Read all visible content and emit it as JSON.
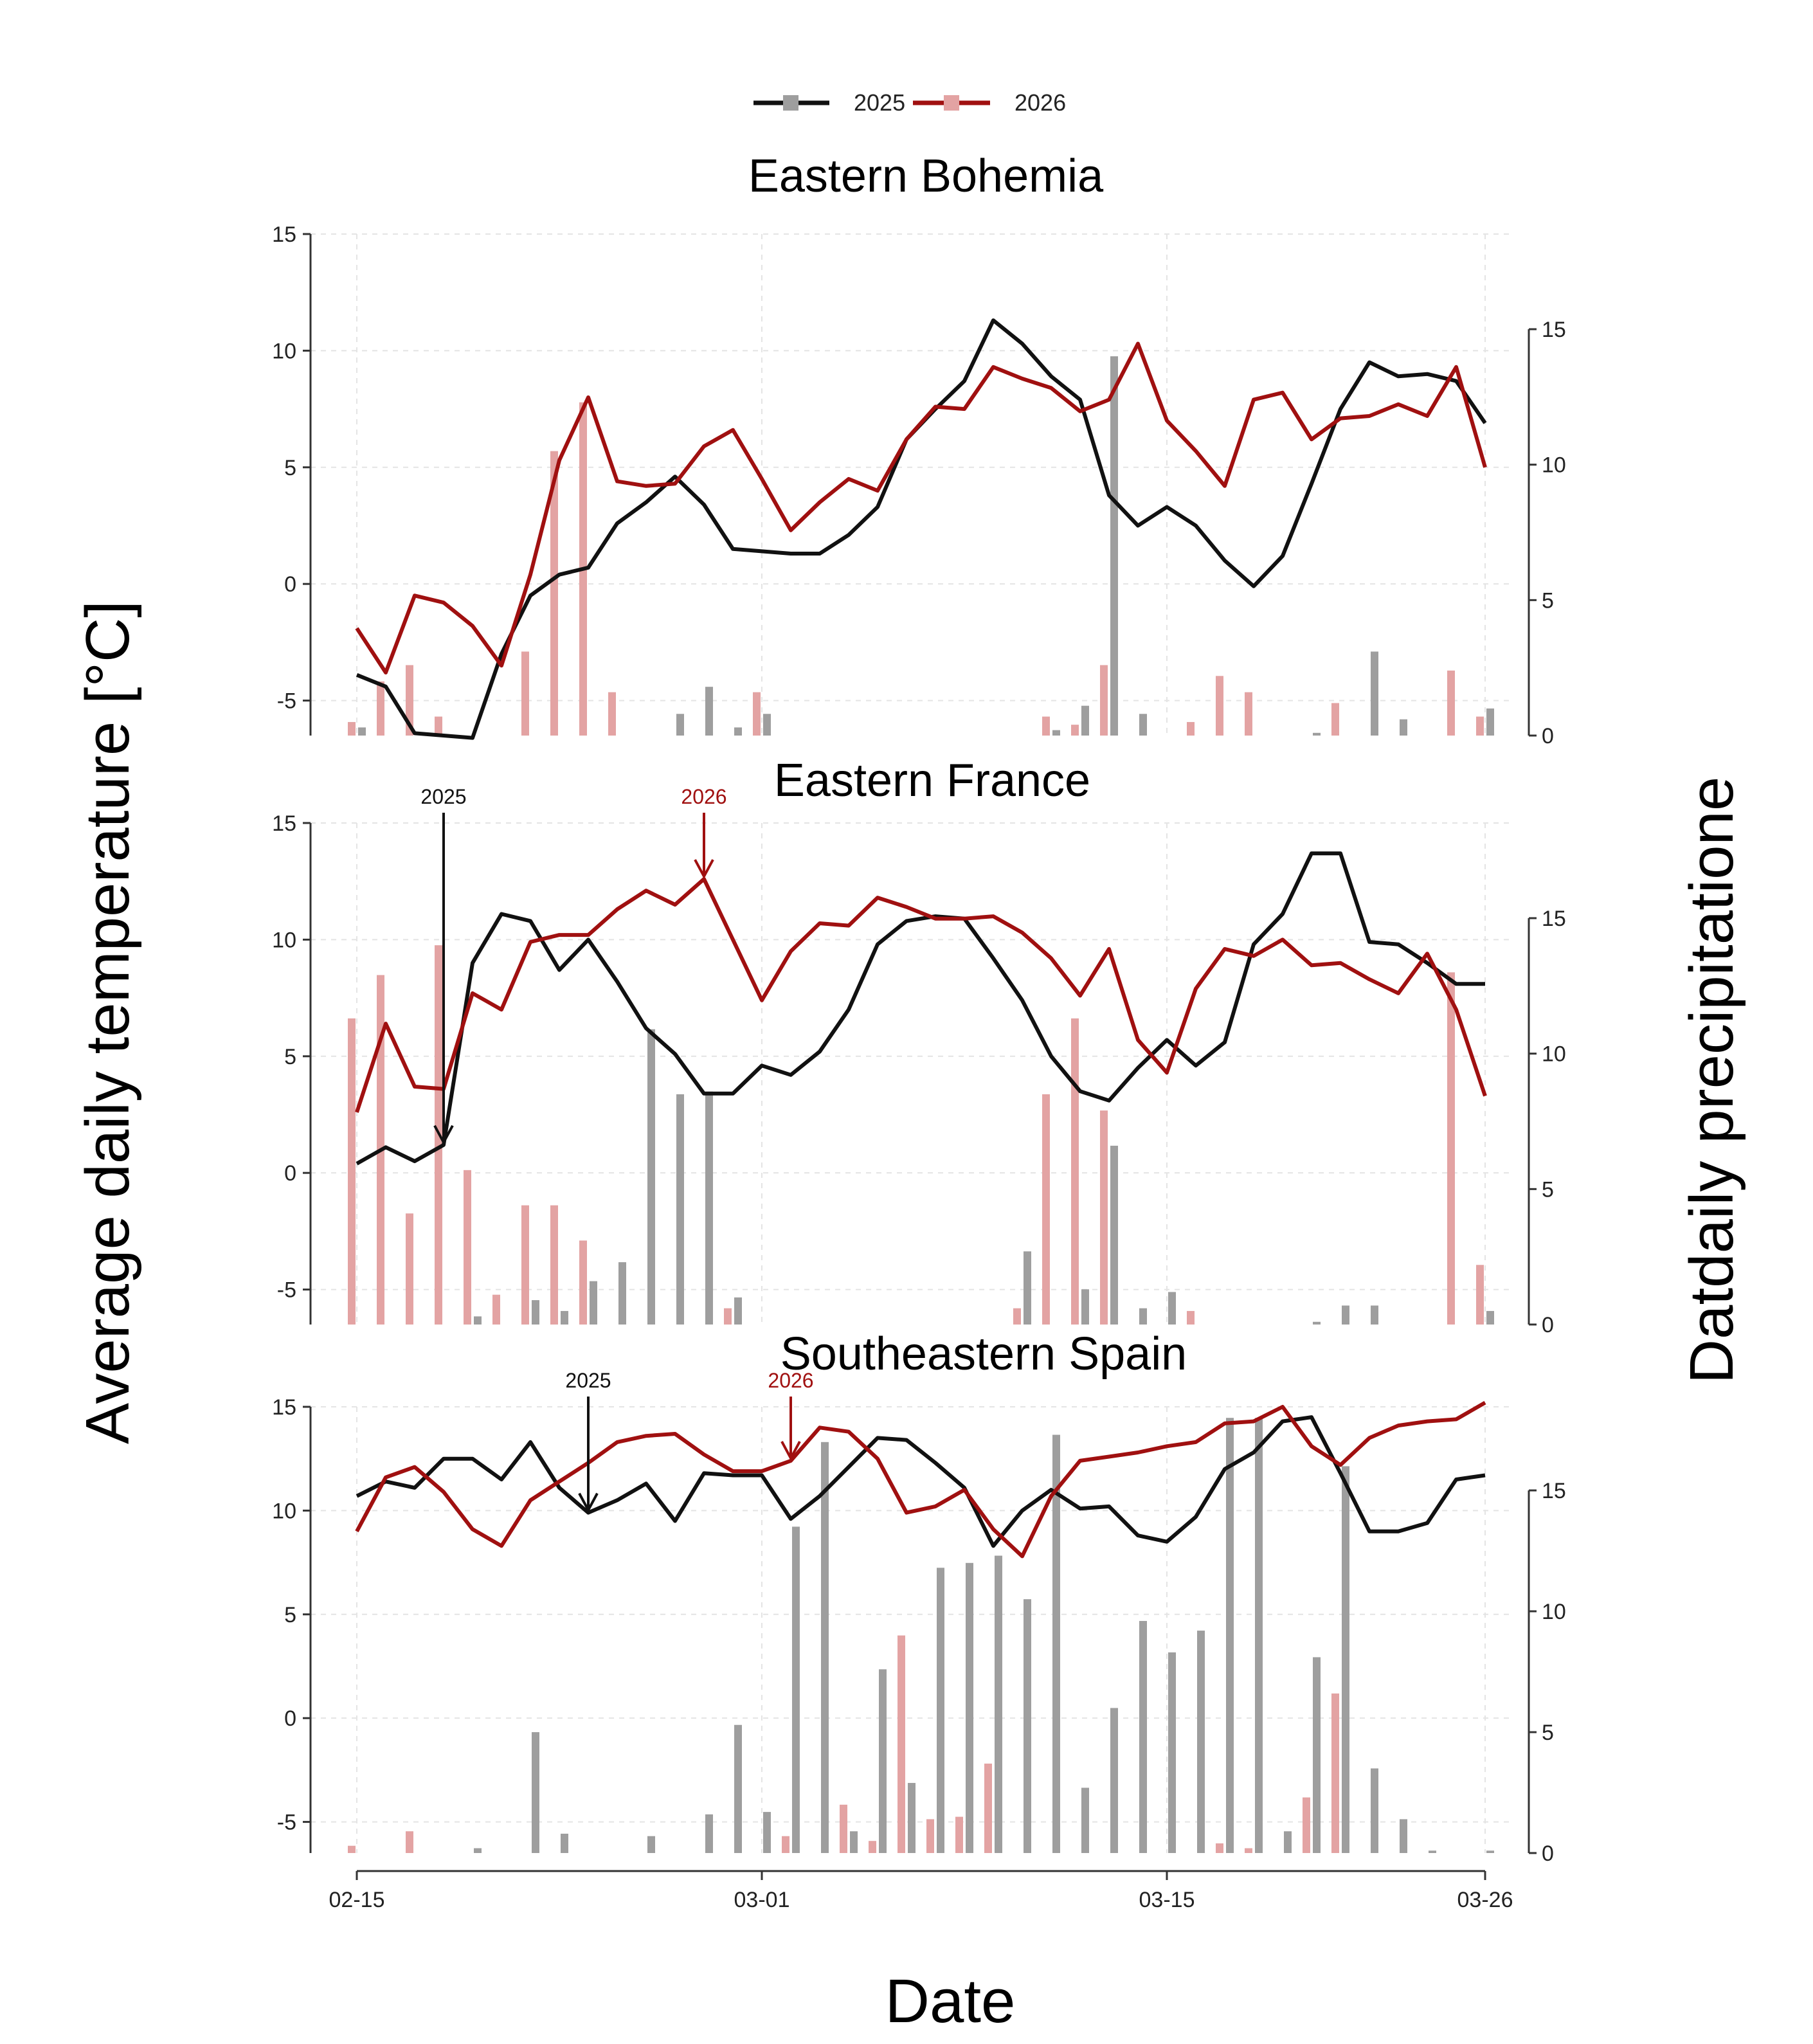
{
  "chart_data": {
    "type": "line+bar",
    "legend": [
      {
        "name": "2025",
        "line_color": "#111111",
        "bar_color": "#9e9e9e"
      },
      {
        "name": "2026",
        "line_color": "#a01010",
        "bar_color": "#e3a3a3"
      }
    ],
    "legend_position": "top-center",
    "xlabel": "Date",
    "ylabel_left": "Average daily temperature [°C]",
    "ylabel_right": "Datdaily precipitatione",
    "x_tick_labels": [
      "02-15",
      "03-01",
      "03-15",
      "03-26"
    ],
    "x_tick_days": [
      0,
      14,
      28,
      39
    ],
    "x_range": [
      0,
      39
    ],
    "panels": [
      {
        "title": "Eastern Bohemia",
        "temp_range": [
          -6.5,
          15
        ],
        "temp_ticks": [
          -5,
          0,
          5,
          10,
          15
        ],
        "temp_tick_labels": [
          "-5",
          "0",
          "5",
          "10",
          "15"
        ],
        "precip_range": [
          0,
          15
        ],
        "precip_ticks": [
          0,
          5,
          10,
          15
        ],
        "precip_tick_labels": [
          "0",
          "5",
          "10",
          "15"
        ],
        "temp_2025": [
          -3.9,
          -4.4,
          -6.4,
          -6.5,
          -6.6,
          -3.0,
          -0.5,
          0.4,
          0.7,
          2.6,
          3.5,
          4.6,
          3.4,
          1.5,
          1.4,
          1.3,
          1.3,
          2.1,
          3.3,
          6.2,
          7.5,
          8.7,
          11.3,
          10.3,
          8.9,
          7.9,
          3.8,
          2.5,
          3.3,
          2.5,
          1.0,
          -0.1,
          1.2,
          4.3,
          7.5,
          9.5,
          8.9,
          9.0,
          8.7,
          6.9
        ],
        "temp_2026": [
          -1.9,
          -3.8,
          -0.5,
          -0.8,
          -1.8,
          -3.5,
          0.4,
          5.3,
          8.0,
          4.4,
          4.2,
          4.3,
          5.9,
          6.6,
          4.5,
          2.3,
          3.5,
          4.5,
          4.0,
          6.2,
          7.6,
          7.5,
          9.3,
          8.8,
          8.4,
          7.4,
          7.9,
          10.3,
          7.0,
          5.7,
          4.2,
          7.9,
          8.2,
          6.2,
          7.1,
          7.2,
          7.7,
          7.2,
          9.3,
          5.0
        ],
        "precip_2025": [
          0.3,
          0,
          0,
          0,
          0,
          0,
          0,
          0,
          0,
          0,
          0,
          0.8,
          1.8,
          0.3,
          0.8,
          0,
          0,
          0,
          0,
          0,
          0,
          0,
          0,
          0,
          0.2,
          1.1,
          14.0,
          0.8,
          0,
          0,
          0,
          0,
          0,
          0.1,
          0,
          3.1,
          0.6,
          0,
          0,
          1.0
        ],
        "precip_2026": [
          0.5,
          2.0,
          2.6,
          0.7,
          0,
          0,
          3.1,
          10.5,
          12.3,
          1.6,
          0,
          0,
          0,
          0,
          1.6,
          0,
          0,
          0,
          0,
          0,
          0,
          0,
          0,
          0,
          0.7,
          0.4,
          2.6,
          0,
          0,
          0.5,
          2.2,
          1.6,
          0,
          0,
          1.2,
          0,
          0,
          0,
          2.4,
          0.7
        ],
        "annotations": []
      },
      {
        "title": "Eastern France",
        "temp_range": [
          -6.5,
          15
        ],
        "temp_ticks": [
          -5,
          0,
          5,
          10,
          15
        ],
        "temp_tick_labels": [
          "-5",
          "0",
          "5",
          "10",
          "15"
        ],
        "precip_range": [
          0,
          15
        ],
        "precip_ticks": [
          0,
          5,
          10,
          15
        ],
        "precip_tick_labels": [
          "0",
          "5",
          "10",
          "15"
        ],
        "temp_2025": [
          0.4,
          1.1,
          0.5,
          1.2,
          9.0,
          11.1,
          10.8,
          8.7,
          10.0,
          8.2,
          6.2,
          5.1,
          3.4,
          3.4,
          4.6,
          4.2,
          5.2,
          7.0,
          9.8,
          10.8,
          11.0,
          10.9,
          9.2,
          7.4,
          5.0,
          3.5,
          3.1,
          4.5,
          5.7,
          4.6,
          5.6,
          9.8,
          11.1,
          13.7,
          13.7,
          9.9,
          9.8,
          9.0,
          8.1,
          8.1
        ],
        "temp_2026": [
          2.6,
          6.4,
          3.7,
          3.6,
          7.7,
          7.0,
          9.9,
          10.2,
          10.2,
          11.3,
          12.1,
          11.5,
          12.6,
          10.0,
          7.4,
          9.5,
          10.7,
          10.6,
          11.8,
          11.4,
          10.9,
          10.9,
          11.0,
          10.3,
          9.2,
          7.6,
          9.6,
          5.7,
          4.3,
          7.9,
          9.6,
          9.3,
          10.0,
          8.9,
          9.0,
          8.3,
          7.7,
          9.4,
          7.0,
          3.3
        ],
        "precip_2025": [
          0,
          0,
          0,
          0,
          0.3,
          0,
          0.9,
          0.5,
          1.6,
          2.3,
          10.9,
          8.5,
          8.6,
          1.0,
          0,
          0,
          0,
          0,
          0,
          0,
          0,
          0,
          0,
          2.7,
          0,
          1.3,
          6.6,
          0.6,
          1.2,
          0,
          0,
          0,
          0,
          0.1,
          0.7,
          0.7,
          0,
          0,
          0,
          0.5
        ],
        "precip_2026": [
          11.3,
          12.9,
          4.1,
          14.0,
          5.7,
          1.1,
          4.4,
          4.4,
          3.1,
          0,
          0,
          0,
          0,
          0.6,
          0,
          0,
          0,
          0,
          0,
          0,
          0,
          0,
          0,
          0.6,
          8.5,
          11.3,
          7.9,
          0,
          0,
          0.5,
          0,
          0,
          0,
          0,
          0,
          0,
          0,
          0,
          13.0,
          2.2
        ],
        "annotations": [
          {
            "label": "2025",
            "series": "2025",
            "day": 3
          },
          {
            "label": "2026",
            "series": "2026",
            "day": 12
          }
        ]
      },
      {
        "title": "Southeastern Spain",
        "temp_range": [
          -6.5,
          15
        ],
        "temp_ticks": [
          -5,
          0,
          5,
          10,
          15
        ],
        "temp_tick_labels": [
          "-5",
          "0",
          "5",
          "10",
          "15"
        ],
        "precip_range": [
          0,
          15
        ],
        "precip_ticks": [
          0,
          5,
          10,
          15
        ],
        "precip_tick_labels": [
          "0",
          "5",
          "10",
          "15"
        ],
        "temp_2025": [
          10.7,
          11.4,
          11.1,
          12.5,
          12.5,
          11.5,
          13.3,
          11.1,
          9.9,
          10.5,
          11.3,
          9.5,
          11.8,
          11.7,
          11.7,
          9.6,
          10.7,
          12.1,
          13.5,
          13.4,
          12.3,
          11.1,
          8.3,
          10.0,
          11.0,
          10.1,
          10.2,
          8.8,
          8.5,
          9.7,
          12.0,
          12.8,
          14.3,
          14.5,
          11.8,
          9.0,
          9.0,
          9.4,
          11.5,
          11.7
        ],
        "temp_2026": [
          9.0,
          11.6,
          12.1,
          10.9,
          9.1,
          8.3,
          10.5,
          11.4,
          12.3,
          13.3,
          13.6,
          13.7,
          12.7,
          11.9,
          11.9,
          12.4,
          14.0,
          13.8,
          12.5,
          9.9,
          10.2,
          11.0,
          9.1,
          7.8,
          10.7,
          12.4,
          12.6,
          12.8,
          13.1,
          13.3,
          14.2,
          14.3,
          15.0,
          13.1,
          12.2,
          13.5,
          14.1,
          14.3,
          14.4,
          15.2
        ],
        "precip_2025": [
          0,
          0,
          0,
          0,
          0.2,
          0,
          5.0,
          0.8,
          0,
          0,
          0.7,
          0,
          1.6,
          5.3,
          1.7,
          13.5,
          17.0,
          0.9,
          7.6,
          2.9,
          11.8,
          12.0,
          12.3,
          10.5,
          17.3,
          2.7,
          6.0,
          9.6,
          8.3,
          9.2,
          18.0,
          18.0,
          0.9,
          8.1,
          16.0,
          3.5,
          1.4,
          0.1,
          0,
          0.1
        ],
        "precip_2026": [
          0.3,
          0,
          0.9,
          0,
          0,
          0,
          0,
          0,
          0,
          0,
          0,
          0,
          0,
          0,
          0,
          0.7,
          0,
          2.0,
          0.5,
          9.0,
          1.4,
          1.5,
          3.7,
          0,
          0,
          0,
          0,
          0,
          0,
          0,
          0.4,
          0.2,
          0,
          2.3,
          6.6,
          0,
          0,
          0,
          0,
          0
        ],
        "annotations": [
          {
            "label": "2025",
            "series": "2025",
            "day": 8
          },
          {
            "label": "2026",
            "series": "2026",
            "day": 15
          }
        ]
      }
    ]
  }
}
